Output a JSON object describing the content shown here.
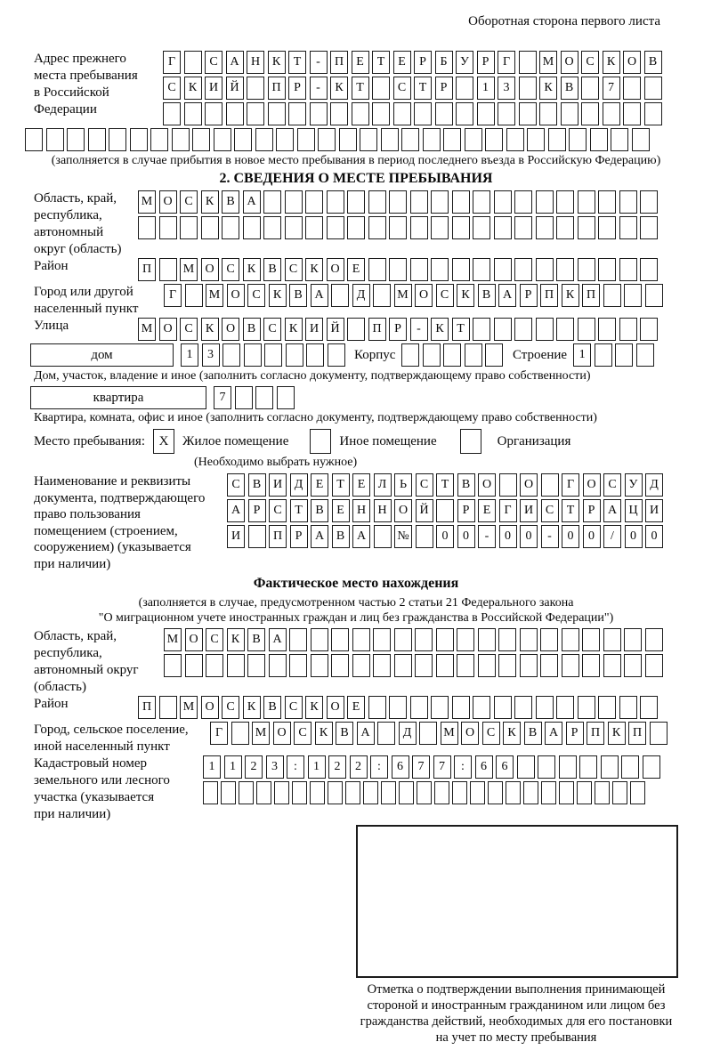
{
  "corner_note": "Оборотная сторона первого листа",
  "prev_address": {
    "label": "Адрес прежнего\nместа пребывания\nв Российской\nФедерации",
    "row1": {
      "cells": "Г САНКТ-ПЕТЕРБУРГ МОСКОВ",
      "count": 24
    },
    "row2": {
      "cells": "СКИЙ ПР-КТ СТР 13 КВ 7",
      "count": 24
    },
    "row3": {
      "cells": "",
      "count": 24
    },
    "row4": {
      "cells": "",
      "count": 30
    },
    "note": "(заполняется в случае прибытия в новое место пребывания в период последнего въезда в Российскую Федерацию)"
  },
  "section2": {
    "title": "2. СВЕДЕНИЯ О МЕСТЕ ПРЕБЫВАНИЯ",
    "oblast": {
      "label": "Область, край,\nреспублика,\nавтономный\nокруг (область)",
      "row1": {
        "cells": "МОСКВА",
        "count": 25
      },
      "row2": {
        "cells": "",
        "count": 25
      }
    },
    "raion": {
      "label": "Район",
      "row": {
        "cells": "П МОСКВСКОЕ",
        "count": 25
      }
    },
    "gorod": {
      "label": "Город или другой\nнаселенный пункт",
      "row": {
        "cells": "Г МОСКВА Д МОСКВАРПКП",
        "count": 24
      }
    },
    "ulitsa": {
      "label": "Улица",
      "row": {
        "cells": "МОСКОВСКИЙ ПР-КТ",
        "count": 25
      }
    },
    "dom": {
      "box_label": "дом",
      "number": {
        "cells": "13",
        "count": 8
      },
      "korpus_label": "Корпус",
      "korpus": {
        "cells": "",
        "count": 5
      },
      "stroenie_label": "Строение",
      "stroenie": {
        "cells": "1",
        "count": 4
      },
      "note": "Дом, участок, владение и иное (заполнить согласно документу, подтверждающему право собственности)"
    },
    "kvartira": {
      "box_label": "квартира",
      "number": {
        "cells": "7",
        "count": 4
      },
      "note": "Квартира, комната, офис и иное (заполнить согласно документу, подтверждающему право собственности)"
    },
    "mesto": {
      "label": "Место пребывания:",
      "checked_mark": "X",
      "options": [
        "Жилое помещение",
        "Иное помещение",
        "Организация"
      ],
      "note": "(Необходимо выбрать нужное)"
    },
    "document": {
      "label": "Наименование и реквизиты\nдокумента, подтверждающего\nправо пользования\nпомещением (строением,\nсооружением) (указывается\nпри наличии)",
      "row1": {
        "cells": "СВИДЕТЕЛЬСТВО О ГОСУД",
        "count": 21
      },
      "row2": {
        "cells": "АРСТВЕННОЙ РЕГИСТРАЦИ",
        "count": 21
      },
      "row3": {
        "cells": "И ПРАВА № 00-00-00/000",
        "count": 21
      }
    }
  },
  "fact_location": {
    "title": "Фактическое место нахождения",
    "note1": "(заполняется в случае, предусмотренном частью 2 статьи 21 Федерального закона",
    "note2": "\"О миграционном учете иностранных граждан и лиц без гражданства в Российской Федерации\")",
    "oblast": {
      "label": "Область, край,\nреспублика,\nавтономный округ\n(область)",
      "row1": {
        "cells": "МОСКВА",
        "count": 24
      },
      "row2": {
        "cells": "",
        "count": 24
      }
    },
    "raion": {
      "label": "Район",
      "row": {
        "cells": "П МОСКВСКОЕ",
        "count": 25
      }
    },
    "gorod": {
      "label": "Город, сельское поселение,\nиной населенный пункт",
      "row": {
        "cells": "Г МОСКВА Д МОСКВАРПКП",
        "count": 22
      }
    },
    "kadastr": {
      "label": "Кадастровый номер\nземельного или лесного\nучастка (указывается\nпри наличии)",
      "row1": {
        "cells": "1123:122:677:66",
        "count": 22
      },
      "row2": {
        "cells": "",
        "count": 25
      }
    }
  },
  "stamp": {
    "caption": "Отметка о подтверждении выполнения принимающей\nстороной и иностранным гражданином или лицом без\nгражданства действий, необходимых для его постановки\nна учет по месту пребывания"
  }
}
